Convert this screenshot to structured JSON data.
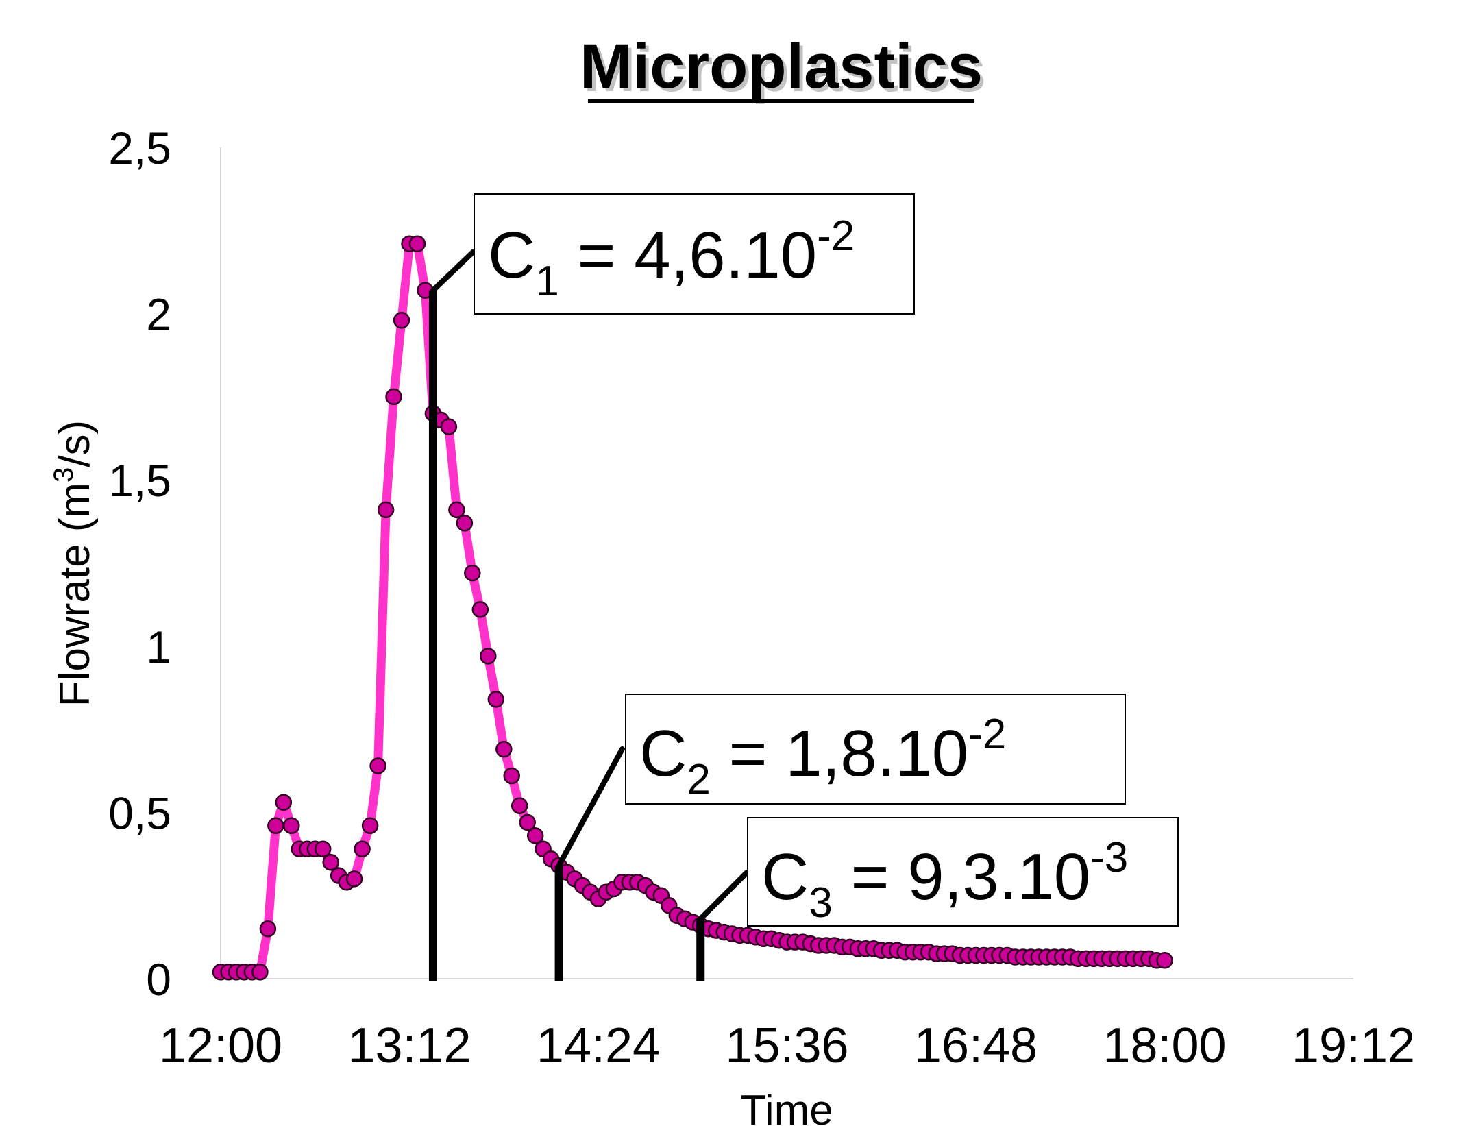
{
  "chart_data": {
    "type": "scatter",
    "title": "Microplastics",
    "xlabel": "Time",
    "ylabel": "Flowrate (m3/s)",
    "ylabel_parts": {
      "before": "Flowrate (m",
      "sup": "3",
      "after": "/s)"
    },
    "xlim": [
      "12:00",
      "19:12"
    ],
    "ylim": [
      0,
      2.5
    ],
    "x_ticks": [
      "12:00",
      "13:12",
      "14:24",
      "15:36",
      "16:48",
      "18:00",
      "19:12"
    ],
    "y_ticks": [
      "0",
      "0,5",
      "1",
      "1,5",
      "2",
      "2,5"
    ],
    "grid": false,
    "legend": "none",
    "series": [
      {
        "line_color": "#ff33cc",
        "marker_color": "#cc0099",
        "marker_edge": "#330022",
        "x": [
          "12:00",
          "12:03",
          "12:06",
          "12:09",
          "12:12",
          "12:15",
          "12:18",
          "12:21",
          "12:24",
          "12:27",
          "12:30",
          "12:33",
          "12:36",
          "12:39",
          "12:42",
          "12:45",
          "12:48",
          "12:51",
          "12:54",
          "12:57",
          "13:00",
          "13:03",
          "13:06",
          "13:09",
          "13:12",
          "13:15",
          "13:18",
          "13:21",
          "13:24",
          "13:27",
          "13:30",
          "13:33",
          "13:36",
          "13:39",
          "13:42",
          "13:45",
          "13:48",
          "13:51",
          "13:54",
          "13:57",
          "14:00",
          "14:03",
          "14:06",
          "14:09",
          "14:12",
          "14:15",
          "14:18",
          "14:21",
          "14:24",
          "14:27",
          "14:30",
          "14:33",
          "14:36",
          "14:39",
          "14:42",
          "14:45",
          "14:48",
          "14:51",
          "14:54",
          "14:57",
          "15:00",
          "15:03",
          "15:06",
          "15:09",
          "15:12",
          "15:15",
          "15:18",
          "15:21",
          "15:24",
          "15:27",
          "15:30",
          "15:33",
          "15:36",
          "15:39",
          "15:42",
          "15:45",
          "15:48",
          "15:51",
          "15:54",
          "15:57",
          "16:00",
          "16:03",
          "16:06",
          "16:09",
          "16:12",
          "16:15",
          "16:18",
          "16:21",
          "16:24",
          "16:27",
          "16:30",
          "16:33",
          "16:36",
          "16:39",
          "16:42",
          "16:45",
          "16:48",
          "16:51",
          "16:54",
          "16:57",
          "17:00",
          "17:03",
          "17:06",
          "17:09",
          "17:12",
          "17:15",
          "17:18",
          "17:21",
          "17:24",
          "17:27",
          "17:30",
          "17:33",
          "17:36",
          "17:39",
          "17:42",
          "17:45",
          "17:48",
          "17:51",
          "17:54",
          "17:57",
          "18:00"
        ],
        "y": [
          0.02,
          0.02,
          0.02,
          0.02,
          0.02,
          0.02,
          0.15,
          0.46,
          0.53,
          0.46,
          0.39,
          0.39,
          0.39,
          0.39,
          0.35,
          0.31,
          0.29,
          0.3,
          0.39,
          0.46,
          0.64,
          1.41,
          1.75,
          1.98,
          2.21,
          2.21,
          2.07,
          1.7,
          1.68,
          1.66,
          1.41,
          1.37,
          1.22,
          1.11,
          0.97,
          0.84,
          0.69,
          0.61,
          0.52,
          0.47,
          0.43,
          0.39,
          0.36,
          0.34,
          0.32,
          0.3,
          0.28,
          0.26,
          0.24,
          0.26,
          0.27,
          0.29,
          0.29,
          0.29,
          0.28,
          0.26,
          0.25,
          0.22,
          0.19,
          0.18,
          0.17,
          0.16,
          0.15,
          0.145,
          0.14,
          0.135,
          0.13,
          0.13,
          0.125,
          0.12,
          0.12,
          0.115,
          0.11,
          0.11,
          0.11,
          0.105,
          0.1,
          0.1,
          0.1,
          0.095,
          0.095,
          0.09,
          0.09,
          0.09,
          0.085,
          0.085,
          0.085,
          0.08,
          0.08,
          0.08,
          0.08,
          0.075,
          0.075,
          0.075,
          0.07,
          0.07,
          0.07,
          0.07,
          0.07,
          0.07,
          0.07,
          0.065,
          0.065,
          0.065,
          0.065,
          0.065,
          0.065,
          0.065,
          0.065,
          0.06,
          0.06,
          0.06,
          0.06,
          0.06,
          0.06,
          0.06,
          0.06,
          0.06,
          0.06,
          0.055,
          0.055
        ]
      }
    ],
    "annotations": [
      {
        "id": "c1",
        "letter": "C",
        "sub": "1",
        "rest": " = 4,6.10",
        "sup": "-2",
        "x": "13:21",
        "y": 2.07
      },
      {
        "id": "c2",
        "letter": "C",
        "sub": "2",
        "rest": " = 1,8.10",
        "sup": "-2",
        "x": "14:09",
        "y": 0.34
      },
      {
        "id": "c3",
        "letter": "C",
        "sub": "3",
        "rest": " = 9,3.10",
        "sup": "-3",
        "x": "15:03",
        "y": 0.18
      }
    ]
  }
}
